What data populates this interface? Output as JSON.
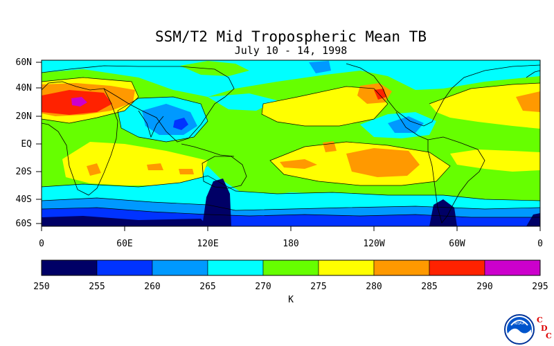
{
  "title": "SSM/T2 Mid Tropospheric Mean TB",
  "subtitle": "July 10 - 14, 1998",
  "map": {
    "lat_labels": [
      "60N",
      "40N",
      "20N",
      "EQ",
      "20S",
      "40S",
      "60S"
    ],
    "lon_labels": [
      "0",
      "60E",
      "120E",
      "180",
      "120W",
      "60W",
      "0"
    ]
  },
  "colorbar": {
    "unit": "K",
    "levels": [
      "250",
      "255",
      "260",
      "265",
      "270",
      "275",
      "280",
      "285",
      "290",
      "295"
    ],
    "colors": [
      "#000066",
      "#0033ff",
      "#0099ff",
      "#00ffff",
      "#66ff00",
      "#ffff00",
      "#ff9900",
      "#ff2200",
      "#cc00cc"
    ]
  },
  "logo": {
    "text": "NOAA",
    "letters": [
      "C",
      "D",
      "C"
    ]
  }
}
